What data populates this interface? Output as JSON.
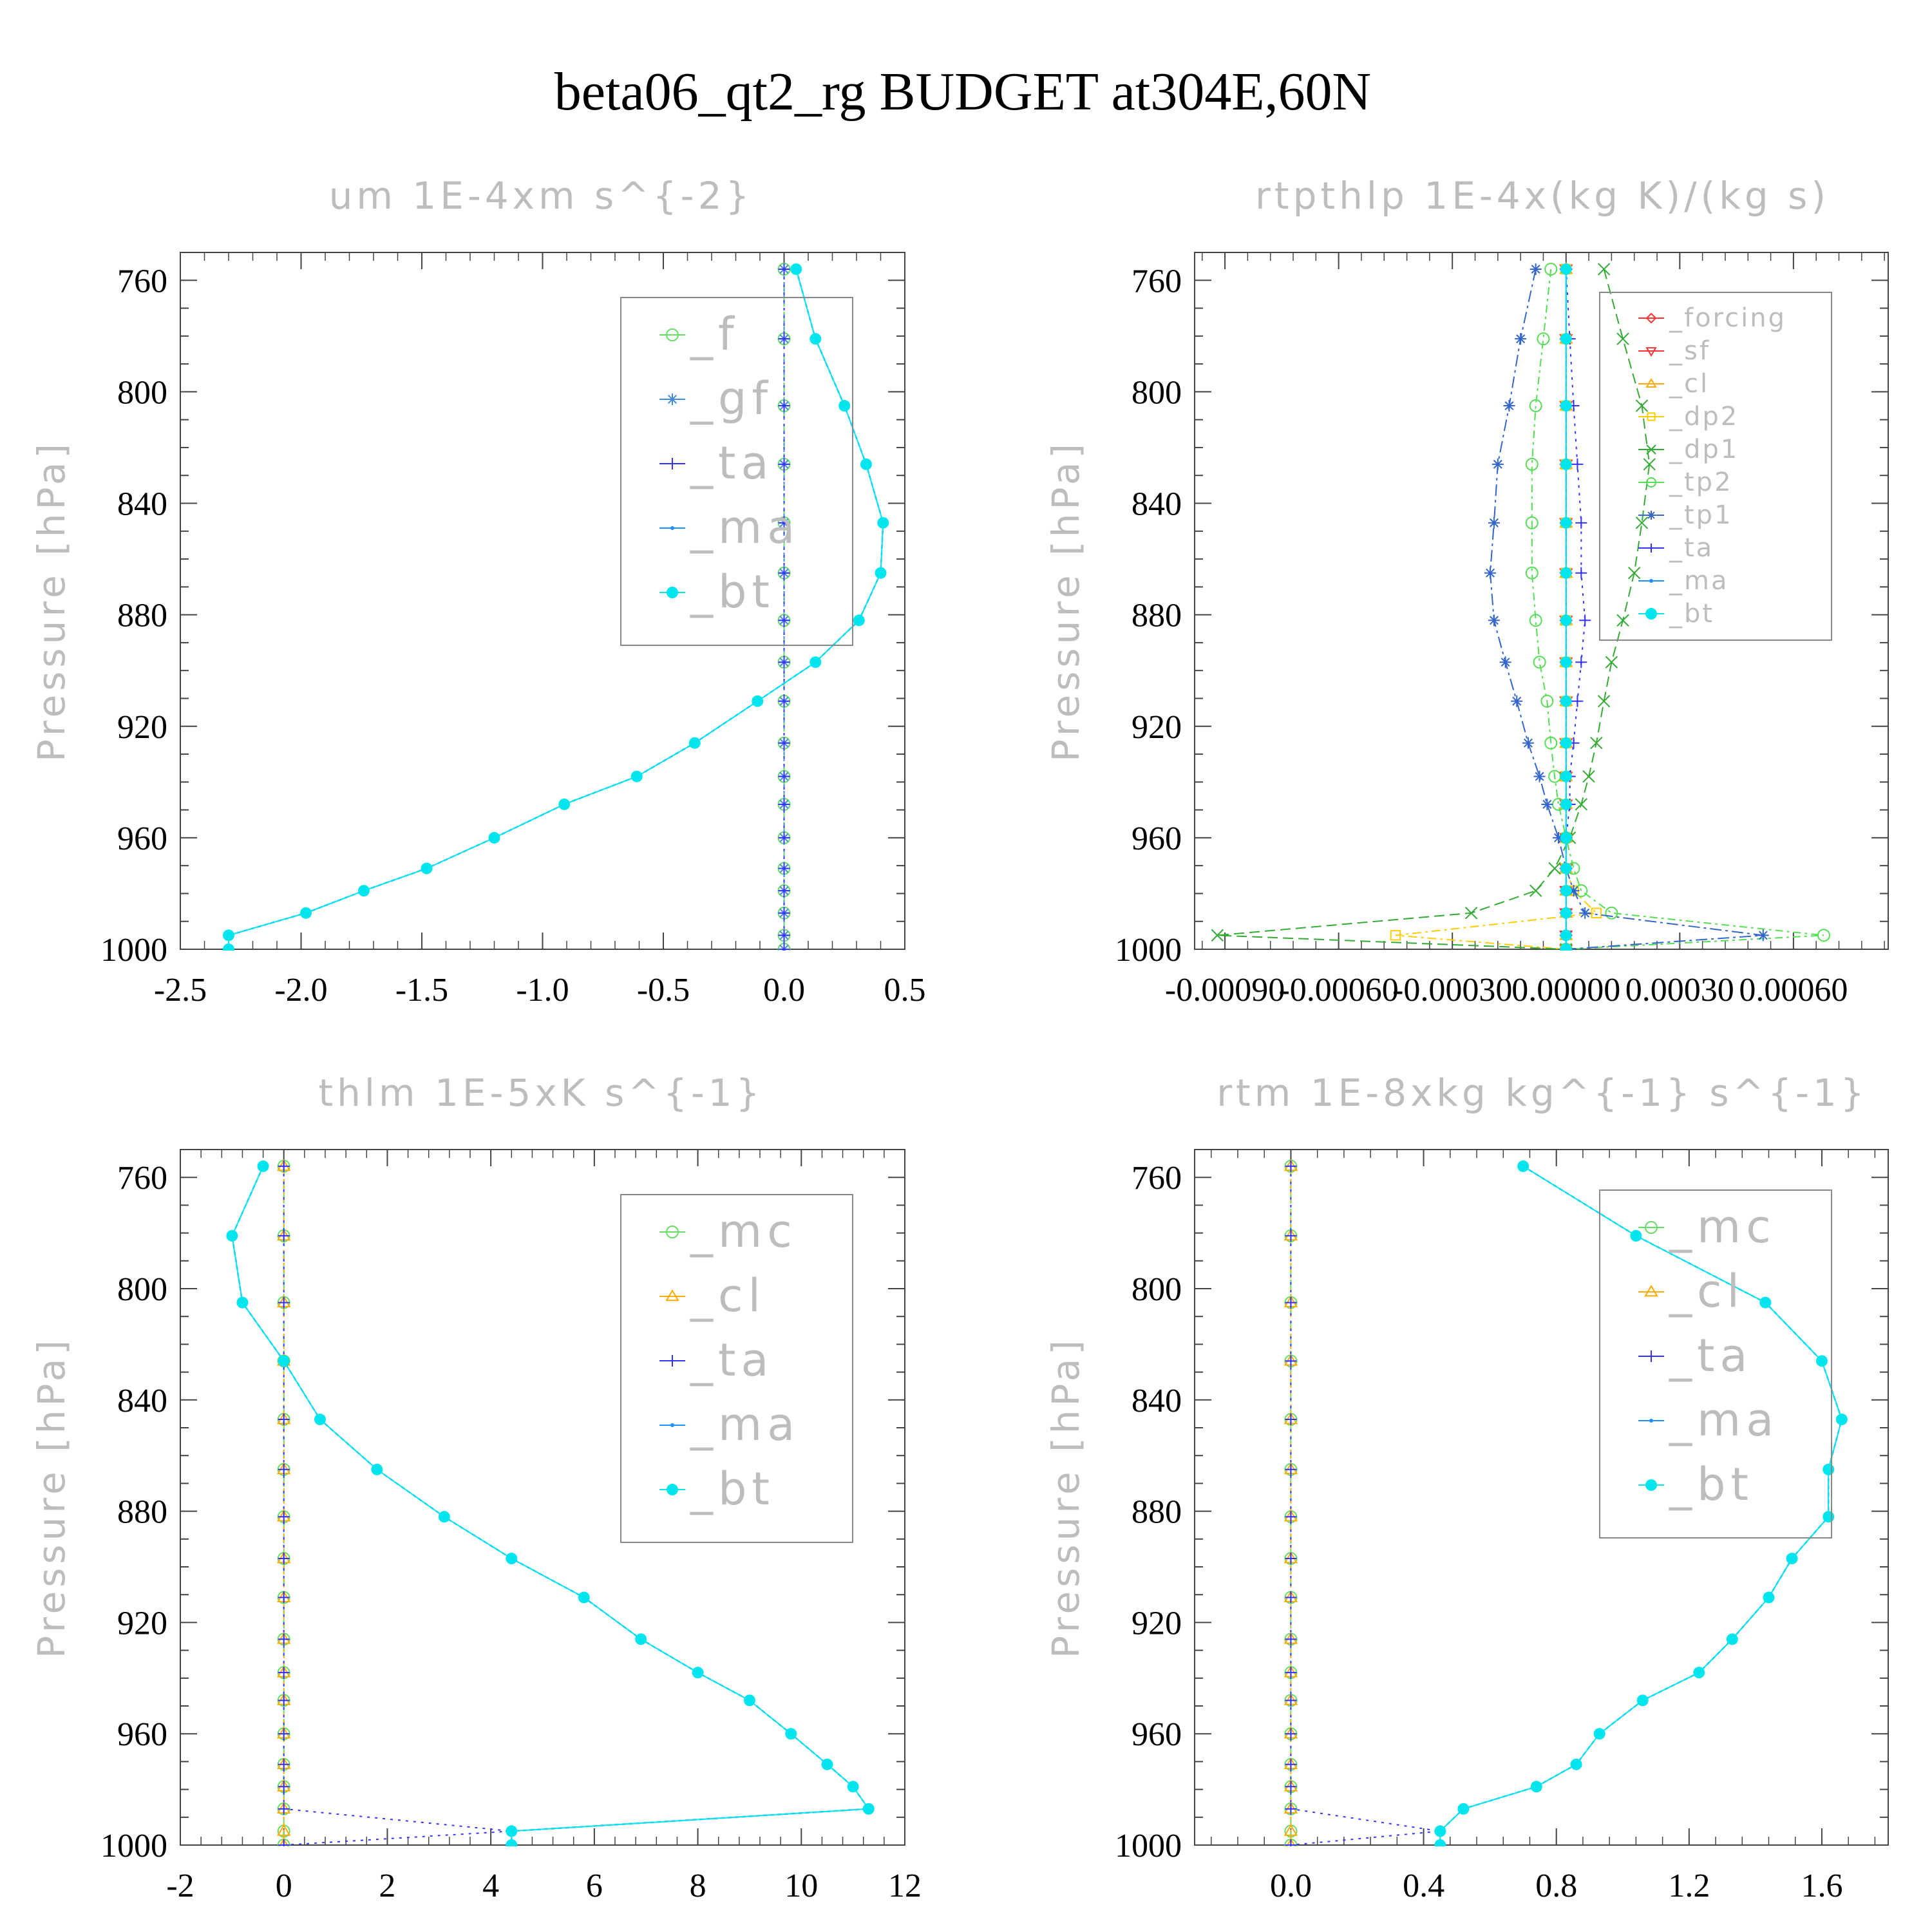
{
  "page": {
    "title": "beta06_qt2_rg  BUDGET at304E,60N"
  },
  "colors": {
    "bt": "#00e5ee",
    "ma": "#1e90ff",
    "ta": "#3333ff",
    "f": "#66dd66",
    "gf": "#4488dd",
    "forcing": "#ff3333",
    "sf": "#ff3333",
    "cl_orange": "#ffaa00",
    "dp2": "#ffcc00",
    "dp1": "#33aa33",
    "tp2": "#55dd55",
    "tp1": "#3366cc",
    "mc": "#66dd66",
    "cl_blue": "#4488dd",
    "frame": "#444444",
    "label_gray": "#bdbdbd"
  },
  "chart_data": [
    {
      "type": "line",
      "id": "um",
      "title": "um  1E-4xm s^{-2}",
      "ylabel": "Pressure [hPa]",
      "ylim": [
        1000,
        750
      ],
      "yticks": [
        "760",
        "800",
        "840",
        "880",
        "920",
        "960",
        "1000"
      ],
      "xlim": [
        -2.5,
        0.5
      ],
      "xticks": [
        "-2.5",
        "-2.0",
        "-1.5",
        "-1.0",
        "-0.5",
        "0.0",
        "0.5"
      ],
      "legend_position": "top-right",
      "legend": [
        "_f",
        "_gf",
        "_ta",
        "_ma",
        "_bt"
      ],
      "y": [
        756,
        781,
        805,
        826,
        847,
        865,
        882,
        897,
        911,
        926,
        938,
        948,
        960,
        971,
        979,
        987,
        995,
        1000
      ],
      "series": [
        {
          "name": "_f",
          "values": [
            0,
            0,
            0,
            0,
            0,
            0,
            0,
            0,
            0,
            0,
            0,
            0,
            0,
            0,
            0,
            0,
            0,
            0
          ]
        },
        {
          "name": "_gf",
          "values": [
            0,
            0,
            0,
            0,
            0,
            0,
            0,
            0,
            0,
            0,
            0,
            0,
            0,
            0,
            0,
            0,
            0,
            0
          ]
        },
        {
          "name": "_ta",
          "values": [
            0,
            0,
            0,
            0,
            0,
            0,
            0,
            0,
            0,
            0,
            0,
            0,
            0,
            0,
            0,
            0,
            0,
            0
          ]
        },
        {
          "name": "_ma",
          "values": [
            0.05,
            0.13,
            0.25,
            0.34,
            0.41,
            0.4,
            0.31,
            0.13,
            -0.11,
            -0.37,
            -0.61,
            -0.91,
            -1.2,
            -1.48,
            -1.74,
            -1.98,
            -2.3,
            -2.3
          ]
        },
        {
          "name": "_bt",
          "values": [
            0.05,
            0.13,
            0.25,
            0.34,
            0.41,
            0.4,
            0.31,
            0.13,
            -0.11,
            -0.37,
            -0.61,
            -0.91,
            -1.2,
            -1.48,
            -1.74,
            -1.98,
            -2.3,
            -2.3
          ]
        }
      ]
    },
    {
      "type": "line",
      "id": "rtpthlp",
      "title": "rtpthlp  1E-4x(kg K)/(kg s)",
      "ylabel": "Pressure [hPa]",
      "ylim": [
        1000,
        750
      ],
      "yticks": [
        "760",
        "800",
        "840",
        "880",
        "920",
        "960",
        "1000"
      ],
      "xlim": [
        -0.00098,
        0.00085
      ],
      "xticks": [
        "-0.00090",
        "-0.00060",
        "-0.00030",
        "0.00000",
        "0.00030",
        "0.00060"
      ],
      "legend_position": "top-right",
      "legend": [
        "_forcing",
        "_sf",
        "_cl",
        "_dp2",
        "_dp1",
        "_tp2",
        "_tp1",
        "_ta",
        "_ma",
        "_bt"
      ],
      "y": [
        756,
        781,
        805,
        826,
        847,
        865,
        882,
        897,
        911,
        926,
        938,
        948,
        960,
        971,
        979,
        987,
        995,
        1000
      ],
      "series": [
        {
          "name": "_forcing",
          "values": [
            0,
            0,
            0,
            0,
            0,
            0,
            0,
            0,
            0,
            0,
            0,
            0,
            0,
            0,
            0,
            0,
            0,
            0
          ]
        },
        {
          "name": "_sf",
          "values": [
            0,
            0,
            0,
            0,
            0,
            0,
            0,
            0,
            0,
            0,
            0,
            0,
            0,
            0,
            0,
            0,
            0,
            0
          ]
        },
        {
          "name": "_cl",
          "values": [
            0,
            0,
            0,
            0,
            0,
            0,
            0,
            0,
            0,
            0,
            0,
            0,
            0,
            0,
            0,
            0,
            0,
            0
          ]
        },
        {
          "name": "_dp2",
          "values": [
            0,
            0,
            0,
            0,
            0,
            0,
            0,
            0,
            0,
            0,
            0,
            0,
            0,
            0,
            2e-05,
            8e-05,
            -0.00045,
            0
          ]
        },
        {
          "name": "_dp1",
          "values": [
            0.0001,
            0.00015,
            0.0002,
            0.00022,
            0.0002,
            0.00018,
            0.00015,
            0.00012,
            0.0001,
            8e-05,
            6e-05,
            4e-05,
            1e-05,
            -3e-05,
            -8e-05,
            -0.00025,
            -0.00092,
            0
          ]
        },
        {
          "name": "_tp2",
          "values": [
            -4e-05,
            -6e-05,
            -8e-05,
            -9e-05,
            -9e-05,
            -9e-05,
            -8e-05,
            -7e-05,
            -5e-05,
            -4e-05,
            -3e-05,
            -2e-05,
            0,
            2e-05,
            4e-05,
            0.00012,
            0.00068,
            0
          ]
        },
        {
          "name": "_tp1",
          "values": [
            -8e-05,
            -0.00012,
            -0.00015,
            -0.00018,
            -0.00019,
            -0.0002,
            -0.00019,
            -0.00016,
            -0.00013,
            -0.0001,
            -7e-05,
            -5e-05,
            -2e-05,
            0,
            2e-05,
            5e-05,
            0.00052,
            0
          ]
        },
        {
          "name": "_ta",
          "values": [
            0,
            1e-05,
            2e-05,
            3e-05,
            4e-05,
            4e-05,
            5e-05,
            4e-05,
            3e-05,
            2e-05,
            1e-05,
            1e-05,
            0,
            0,
            0,
            0,
            0,
            0
          ]
        },
        {
          "name": "_ma",
          "values": [
            0,
            0,
            0,
            0,
            0,
            0,
            0,
            0,
            0,
            0,
            0,
            0,
            0,
            0,
            0,
            0,
            0,
            0
          ]
        },
        {
          "name": "_bt",
          "values": [
            0,
            0,
            0,
            0,
            0,
            0,
            0,
            0,
            0,
            0,
            0,
            0,
            0,
            0,
            0,
            0,
            0,
            0
          ]
        }
      ]
    },
    {
      "type": "line",
      "id": "thlm",
      "title": "thlm  1E-5xK s^{-1}",
      "ylabel": "Pressure [hPa]",
      "ylim": [
        1000,
        750
      ],
      "yticks": [
        "760",
        "800",
        "840",
        "880",
        "920",
        "960",
        "1000"
      ],
      "xlim": [
        -2,
        12
      ],
      "xticks": [
        "-2",
        "0",
        "2",
        "4",
        "6",
        "8",
        "10",
        "12"
      ],
      "legend_position": "top-right",
      "legend": [
        "_mc",
        "_cl",
        "_ta",
        "_ma",
        "_bt"
      ],
      "y": [
        756,
        781,
        805,
        826,
        847,
        865,
        882,
        897,
        911,
        926,
        938,
        948,
        960,
        971,
        979,
        987,
        995,
        1000
      ],
      "series": [
        {
          "name": "_mc",
          "values": [
            0,
            0,
            0,
            0,
            0,
            0,
            0,
            0,
            0,
            0,
            0,
            0,
            0,
            0,
            0,
            0,
            0,
            0
          ]
        },
        {
          "name": "_cl",
          "values": [
            0,
            0,
            0,
            0,
            0,
            0,
            0,
            0,
            0,
            0,
            0,
            0,
            0,
            0,
            0,
            0,
            0,
            0
          ]
        },
        {
          "name": "_ta",
          "values": [
            0,
            0,
            0,
            0,
            0,
            0,
            0,
            0,
            0,
            0,
            0,
            0,
            0,
            0,
            0,
            0,
            4.4,
            0
          ]
        },
        {
          "name": "_ma",
          "values": [
            -0.4,
            -1.0,
            -0.8,
            0,
            0.7,
            1.8,
            3.1,
            4.4,
            5.8,
            6.9,
            8.0,
            9.0,
            9.8,
            10.5,
            11.0,
            11.3,
            4.4,
            4.4
          ]
        },
        {
          "name": "_bt",
          "values": [
            -0.4,
            -1.0,
            -0.8,
            0,
            0.7,
            1.8,
            3.1,
            4.4,
            5.8,
            6.9,
            8.0,
            9.0,
            9.8,
            10.5,
            11.0,
            11.3,
            4.4,
            4.4
          ]
        }
      ]
    },
    {
      "type": "line",
      "id": "rtm",
      "title": "rtm  1E-8xkg kg^{-1} s^{-1}",
      "ylabel": "Pressure [hPa]",
      "ylim": [
        1000,
        750
      ],
      "yticks": [
        "760",
        "800",
        "840",
        "880",
        "920",
        "960",
        "1000"
      ],
      "xlim": [
        -0.29,
        1.8
      ],
      "xticks": [
        "0.0",
        "0.4",
        "0.8",
        "1.2",
        "1.6"
      ],
      "legend_position": "top-right",
      "legend": [
        "_mc",
        "_cl",
        "_ta",
        "_ma",
        "_bt"
      ],
      "y": [
        756,
        781,
        805,
        826,
        847,
        865,
        882,
        897,
        911,
        926,
        938,
        948,
        960,
        971,
        979,
        987,
        995,
        1000
      ],
      "series": [
        {
          "name": "_mc",
          "values": [
            0,
            0,
            0,
            0,
            0,
            0,
            0,
            0,
            0,
            0,
            0,
            0,
            0,
            0,
            0,
            0,
            0,
            0
          ]
        },
        {
          "name": "_cl",
          "values": [
            0,
            0,
            0,
            0,
            0,
            0,
            0,
            0,
            0,
            0,
            0,
            0,
            0,
            0,
            0,
            0,
            0,
            0
          ]
        },
        {
          "name": "_ta",
          "values": [
            0,
            0,
            0,
            0,
            0,
            0,
            0,
            0,
            0,
            0,
            0,
            0,
            0,
            0,
            0,
            0,
            0.45,
            0
          ]
        },
        {
          "name": "_ma",
          "values": [
            0.7,
            1.04,
            1.43,
            1.6,
            1.66,
            1.62,
            1.62,
            1.51,
            1.44,
            1.33,
            1.23,
            1.06,
            0.93,
            0.86,
            0.74,
            0.52,
            0.45,
            0.45
          ]
        },
        {
          "name": "_bt",
          "values": [
            0.7,
            1.04,
            1.43,
            1.6,
            1.66,
            1.62,
            1.62,
            1.51,
            1.44,
            1.33,
            1.23,
            1.06,
            0.93,
            0.86,
            0.74,
            0.52,
            0.45,
            0.45
          ]
        }
      ]
    }
  ]
}
